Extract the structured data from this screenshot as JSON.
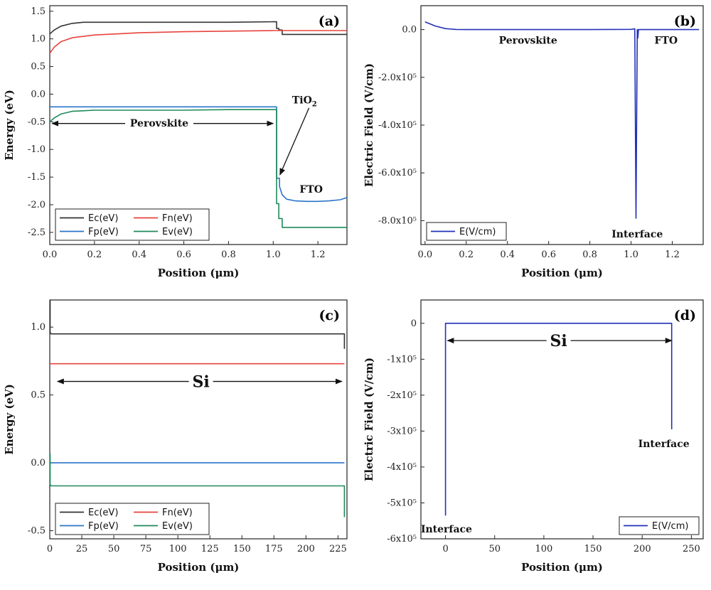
{
  "colors": {
    "Ec": "#333333",
    "Fn": "#e8433e",
    "Fp": "#2a74c8",
    "Ev": "#1f8a5a",
    "E": "#2331b8"
  },
  "chart_data": [
    {
      "id": "a",
      "type": "line",
      "panel_label": "(a)",
      "xlabel": "Position (μm)",
      "ylabel": "Energy (eV)",
      "xlim": [
        0,
        1.33
      ],
      "ylim": [
        -2.72,
        1.6
      ],
      "xticks": [
        0.0,
        0.2,
        0.4,
        0.6,
        0.8,
        1.0,
        1.2
      ],
      "xtick_labels": [
        "0.0",
        "0.2",
        "0.4",
        "0.6",
        "0.8",
        "1.0",
        "1.2"
      ],
      "yticks": [
        1.5,
        1.0,
        0.5,
        0.0,
        -0.5,
        -1.0,
        -1.5,
        -2.0,
        -2.5
      ],
      "ytick_labels": [
        "1.5",
        "1.0",
        "0.5",
        "0.0",
        "-0.5",
        "-1.0",
        "-1.5",
        "-2.0",
        "-2.5"
      ],
      "legend": {
        "position": "bottom-left",
        "columns": 2,
        "entries": [
          "Ec(eV)",
          "Fn(eV)",
          "Fp(eV)",
          "Ev(eV)"
        ]
      },
      "annotations": [
        {
          "text": "Perovskite",
          "x": 0.49,
          "y": -0.52
        },
        {
          "text": "FTO",
          "x": 1.17,
          "y": -1.72
        }
      ],
      "arrows": [
        {
          "from": [
            0.01,
            -0.53
          ],
          "to": [
            1.0,
            -0.53
          ],
          "double": true
        },
        {
          "from": [
            1.16,
            -0.25
          ],
          "to": [
            1.03,
            -1.46
          ],
          "double": false
        }
      ],
      "tio2_label": {
        "base": "TiO",
        "sub": "2",
        "x": 1.14,
        "y": -0.17
      },
      "series": [
        {
          "name": "Ec(eV)",
          "color_key": "Ec",
          "x": [
            0,
            0.02,
            0.05,
            0.1,
            0.15,
            0.2,
            0.4,
            0.6,
            0.8,
            1.0,
            1.015,
            1.015,
            1.025,
            1.025,
            1.04,
            1.04,
            1.33
          ],
          "y": [
            1.09,
            1.16,
            1.23,
            1.28,
            1.3,
            1.3,
            1.3,
            1.3,
            1.3,
            1.31,
            1.31,
            1.19,
            1.19,
            1.16,
            1.16,
            1.08,
            1.08
          ]
        },
        {
          "name": "Fn(eV)",
          "color_key": "Fn",
          "x": [
            0,
            0.02,
            0.05,
            0.1,
            0.2,
            0.3,
            0.4,
            0.6,
            0.8,
            1.0,
            1.02,
            1.33
          ],
          "y": [
            0.74,
            0.85,
            0.95,
            1.02,
            1.07,
            1.09,
            1.11,
            1.13,
            1.14,
            1.15,
            1.15,
            1.15
          ]
        },
        {
          "name": "Fp(eV)",
          "color_key": "Fp",
          "x": [
            0,
            1.015,
            1.015,
            1.028,
            1.028,
            1.04,
            1.06,
            1.1,
            1.15,
            1.2,
            1.25,
            1.3,
            1.33
          ],
          "y": [
            -0.23,
            -0.23,
            -1.52,
            -1.52,
            -1.67,
            -1.82,
            -1.9,
            -1.93,
            -1.94,
            -1.94,
            -1.93,
            -1.91,
            -1.87
          ]
        },
        {
          "name": "Ev(eV)",
          "color_key": "Ev",
          "x": [
            0,
            0.02,
            0.05,
            0.1,
            0.15,
            0.2,
            0.4,
            0.6,
            0.8,
            1.0,
            1.015,
            1.015,
            1.025,
            1.025,
            1.04,
            1.04,
            1.33
          ],
          "y": [
            -0.5,
            -0.43,
            -0.36,
            -0.31,
            -0.3,
            -0.29,
            -0.29,
            -0.29,
            -0.28,
            -0.28,
            -0.28,
            -1.98,
            -1.98,
            -2.25,
            -2.25,
            -2.41,
            -2.41
          ]
        }
      ]
    },
    {
      "id": "b",
      "type": "line",
      "panel_label": "(b)",
      "xlabel": "Position (μm)",
      "ylabel": "Electric Field (V/cm)",
      "xlim": [
        -0.02,
        1.35
      ],
      "ylim": [
        -900000,
        100000
      ],
      "xticks": [
        0.0,
        0.2,
        0.4,
        0.6,
        0.8,
        1.0,
        1.2
      ],
      "xtick_labels": [
        "0.0",
        "0.2",
        "0.4",
        "0.6",
        "0.8",
        "1.0",
        "1.2"
      ],
      "yticks": [
        0,
        -200000,
        -400000,
        -600000,
        -800000
      ],
      "ytick_labels": [
        "0.0",
        "-2.0x10⁵",
        "-4.0x10⁵",
        "-6.0x10⁵",
        "-8.0x10⁵"
      ],
      "legend": {
        "position": "bottom-left",
        "columns": 1,
        "entries": [
          "E(V/cm)"
        ]
      },
      "annotations": [
        {
          "text": "Perovskite",
          "x": 0.5,
          "y": -45000
        },
        {
          "text": "FTO",
          "x": 1.17,
          "y": -45000
        },
        {
          "text": "Interface",
          "x": 1.03,
          "y": -855000
        }
      ],
      "series": [
        {
          "name": "E(V/cm)",
          "color_key": "E",
          "x": [
            0,
            0.05,
            0.1,
            0.15,
            0.2,
            0.4,
            0.8,
            1.0,
            1.018,
            1.024,
            1.03,
            1.033,
            1.036,
            1.04,
            1.33
          ],
          "y": [
            32000,
            15000,
            4000,
            500,
            0,
            0,
            0,
            1000,
            3000,
            -790000,
            0,
            -35000,
            0,
            0,
            0
          ]
        }
      ]
    },
    {
      "id": "c",
      "type": "line",
      "panel_label": "(c)",
      "xlabel": "Position (μm)",
      "ylabel": "Energy (eV)",
      "xlim": [
        0,
        232
      ],
      "ylim": [
        -0.56,
        1.2
      ],
      "xticks": [
        0,
        25,
        50,
        75,
        100,
        125,
        150,
        175,
        200,
        225
      ],
      "xtick_labels": [
        "0",
        "25",
        "50",
        "75",
        "100",
        "125",
        "150",
        "175",
        "200",
        "225"
      ],
      "yticks": [
        1.0,
        0.5,
        0.0,
        -0.5
      ],
      "ytick_labels": [
        "1.0",
        "0.5",
        "0.0",
        "-0.5"
      ],
      "legend": {
        "position": "bottom-left",
        "columns": 2,
        "entries": [
          "Ec(eV)",
          "Fn(eV)",
          "Fp(eV)",
          "Ev(eV)"
        ]
      },
      "annotations": [
        {
          "text": "Si",
          "x": 118,
          "y": 0.6,
          "big": true
        }
      ],
      "arrows": [
        {
          "from": [
            6,
            0.6
          ],
          "to": [
            228,
            0.6
          ],
          "double": true
        }
      ],
      "series": [
        {
          "name": "Ec(eV)",
          "color_key": "Ec",
          "x": [
            0.3,
            0.3,
            1,
            229,
            230,
            230
          ],
          "y": [
            1.2,
            0.96,
            0.95,
            0.95,
            0.95,
            0.84
          ]
        },
        {
          "name": "Fn(eV)",
          "color_key": "Fn",
          "x": [
            0,
            230
          ],
          "y": [
            0.73,
            0.73
          ]
        },
        {
          "name": "Fp(eV)",
          "color_key": "Fp",
          "x": [
            0,
            230
          ],
          "y": [
            0.0,
            0.0
          ]
        },
        {
          "name": "Ev(eV)",
          "color_key": "Ev",
          "x": [
            0.3,
            0.3,
            1,
            229,
            230,
            230
          ],
          "y": [
            0.07,
            -0.16,
            -0.17,
            -0.17,
            -0.17,
            -0.4
          ]
        }
      ]
    },
    {
      "id": "d",
      "type": "line",
      "panel_label": "(d)",
      "xlabel": "Position (μm)",
      "ylabel": "Electric Field (V/cm)",
      "xlim": [
        -25,
        262
      ],
      "ylim": [
        -600000,
        65000
      ],
      "xticks": [
        0,
        50,
        100,
        150,
        200,
        250
      ],
      "xtick_labels": [
        "0",
        "50",
        "100",
        "150",
        "200",
        "250"
      ],
      "yticks": [
        0,
        -100000,
        -200000,
        -300000,
        -400000,
        -500000,
        -600000
      ],
      "ytick_labels": [
        "0",
        "-1x10⁵",
        "-2x10⁵",
        "-3x10⁵",
        "-4x10⁵",
        "-5x10⁵",
        "-6x10⁵"
      ],
      "legend": {
        "position": "bottom-right",
        "columns": 1,
        "entries": [
          "E(V/cm)"
        ]
      },
      "annotations": [
        {
          "text": "Si",
          "x": 115,
          "y": -48000,
          "big": true
        },
        {
          "text": "Interface",
          "x": 222,
          "y": -335000
        },
        {
          "text": "Interface",
          "x": 1,
          "y": -572000
        }
      ],
      "arrows": [
        {
          "from": [
            2,
            -48000
          ],
          "to": [
            230,
            -48000
          ],
          "double": true
        }
      ],
      "series": [
        {
          "name": "E(V/cm)",
          "color_key": "E",
          "x": [
            0,
            0,
            230,
            230
          ],
          "y": [
            -535000,
            0,
            0,
            -295000
          ]
        }
      ]
    }
  ]
}
